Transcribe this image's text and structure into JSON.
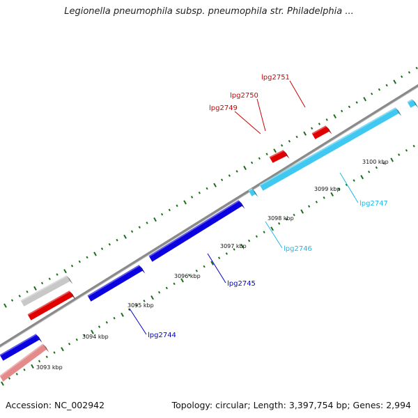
{
  "title": "Legionella pneumophila subsp. pneumophila str. Philadelphia ...",
  "footer": {
    "accession": "Accession: NC_002942",
    "stats": "Topology: circular; Length: 3,397,754 bp; Genes: 2,994"
  },
  "colors": {
    "backbone": "#8a8a8a",
    "tick": "#1a6e1a",
    "forward_gene": "#e00000",
    "pseudo_gene": "#c8c8c8",
    "light_red_gene": "#e48a8a",
    "blue_gene": "#0a00e0",
    "cyan_gene": "#40c8f0",
    "red_label": "#cc0000",
    "blue_label": "#0000cc",
    "cyan_label": "#20b8e8"
  },
  "ticks": [
    "3093 kbp",
    "3094 kbp",
    "3095 kbp",
    "3096 kbp",
    "3097 kbp",
    "3098 kbp",
    "3099 kbp",
    "3100 kbp"
  ],
  "gene_labels": [
    {
      "name": "lpg2751",
      "color": "red"
    },
    {
      "name": "lpg2750",
      "color": "red"
    },
    {
      "name": "lpg2749",
      "color": "red"
    },
    {
      "name": "lpg2747",
      "color": "cyan"
    },
    {
      "name": "lpg2746",
      "color": "cyan"
    },
    {
      "name": "lpg2745",
      "color": "blue"
    },
    {
      "name": "lpg2744",
      "color": "blue"
    }
  ]
}
